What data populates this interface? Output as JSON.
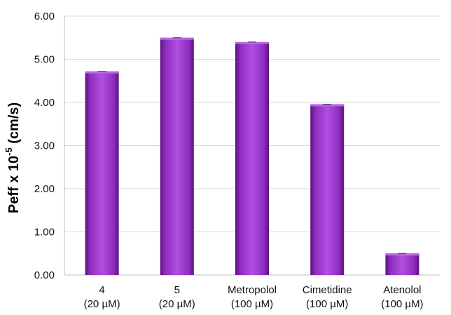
{
  "chart_data": {
    "type": "bar",
    "categories": [
      [
        "4",
        "(20 µM)"
      ],
      [
        "5",
        "(20 µM)"
      ],
      [
        "Metropolol",
        "(100 µM)"
      ],
      [
        "Cimetidine",
        "(100 µM)"
      ],
      [
        "Atenolol",
        "(100 µM)"
      ]
    ],
    "values": [
      4.72,
      5.5,
      5.4,
      3.96,
      0.5
    ],
    "ylim": [
      0,
      6
    ],
    "yticks": [
      "0.00",
      "1.00",
      "2.00",
      "3.00",
      "4.00",
      "5.00",
      "6.00"
    ],
    "ylabel": {
      "base": "Peff x 10",
      "exp": "-5",
      "unit": " (cm/s)"
    },
    "xlabel": "",
    "grid": true,
    "colors": {
      "bar": "#8e2dbf",
      "bar_dark": "#5a137e",
      "bar_light": "#c06ce8",
      "grid": "#d9d9d9",
      "axis": "#bfbfbf"
    }
  }
}
